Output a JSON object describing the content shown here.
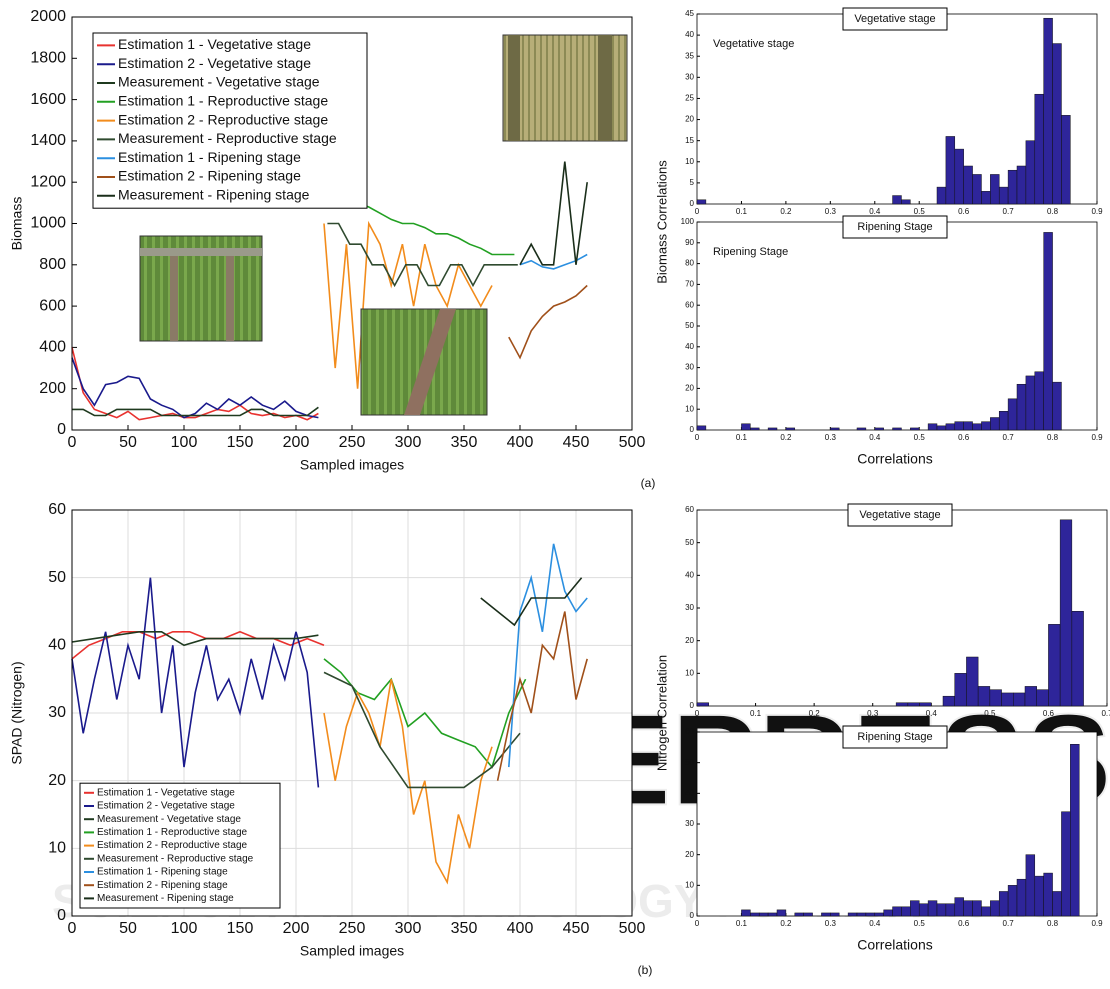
{
  "figure": {
    "panel_labels": [
      "(a)",
      "(b)"
    ],
    "watermark": [
      "SCITEPRESS",
      "SCIENCE AND TECHNOLOGY PUBLICATIONS"
    ]
  },
  "chart_data": [
    {
      "type": "line",
      "xlabel": "Sampled images",
      "ylabel": "Biomass",
      "xlim": [
        0,
        500
      ],
      "ylim": [
        0,
        2000
      ],
      "xticks": [
        0,
        50,
        100,
        150,
        200,
        250,
        300,
        350,
        400,
        450,
        500
      ],
      "yticks": [
        0,
        200,
        400,
        600,
        800,
        1000,
        1200,
        1400,
        1600,
        1800,
        2000
      ],
      "grid": false,
      "legend": "upper left",
      "series": [
        {
          "name": "Estimation 1 - Vegetative stage",
          "color": "#e8322f",
          "x": [
            0,
            10,
            20,
            30,
            40,
            50,
            60,
            70,
            80,
            90,
            100,
            110,
            120,
            130,
            140,
            150,
            160,
            170,
            180,
            190,
            200,
            210,
            220
          ],
          "values": [
            400,
            180,
            100,
            80,
            60,
            90,
            50,
            60,
            70,
            80,
            60,
            60,
            80,
            100,
            90,
            120,
            80,
            70,
            80,
            60,
            70,
            50,
            80
          ]
        },
        {
          "name": "Estimation 2 - Vegetative stage",
          "color": "#1a1a8c",
          "x": [
            0,
            10,
            20,
            30,
            40,
            50,
            60,
            70,
            80,
            90,
            100,
            110,
            120,
            130,
            140,
            150,
            160,
            170,
            180,
            190,
            200,
            210,
            220
          ],
          "values": [
            350,
            200,
            120,
            220,
            230,
            260,
            250,
            150,
            120,
            100,
            60,
            80,
            130,
            100,
            150,
            120,
            160,
            120,
            100,
            140,
            90,
            70,
            60
          ]
        },
        {
          "name": "Measurement - Vegetative stage",
          "color": "#1f3a1f",
          "x": [
            0,
            10,
            20,
            30,
            40,
            50,
            60,
            70,
            80,
            90,
            100,
            110,
            120,
            130,
            140,
            150,
            160,
            170,
            180,
            190,
            200,
            210,
            220
          ],
          "values": [
            100,
            100,
            70,
            70,
            100,
            100,
            100,
            100,
            70,
            70,
            70,
            70,
            70,
            70,
            70,
            70,
            100,
            100,
            70,
            70,
            70,
            70,
            110
          ]
        },
        {
          "name": "Estimation 1 - Reproductive stage",
          "color": "#22a022",
          "x": [
            255,
            265,
            275,
            285,
            295,
            305,
            315,
            325,
            335,
            345,
            355,
            365,
            375,
            385,
            395
          ],
          "values": [
            1100,
            1080,
            1050,
            1020,
            1000,
            1000,
            980,
            950,
            950,
            930,
            900,
            880,
            850,
            850,
            850
          ]
        },
        {
          "name": "Estimation 2 - Reproductive stage",
          "color": "#f28c1c",
          "x": [
            225,
            235,
            245,
            255,
            265,
            275,
            285,
            295,
            305,
            315,
            325,
            335,
            345,
            355,
            365,
            375
          ],
          "values": [
            1000,
            300,
            900,
            200,
            1000,
            900,
            700,
            900,
            600,
            900,
            700,
            600,
            800,
            700,
            600,
            700
          ]
        },
        {
          "name": "Measurement - Reproductive stage",
          "color": "#2f4a2f",
          "x": [
            228,
            238,
            248,
            258,
            268,
            278,
            288,
            298,
            308,
            318,
            328,
            338,
            348,
            358,
            368,
            378,
            388,
            398
          ],
          "values": [
            1000,
            1000,
            900,
            900,
            800,
            800,
            700,
            800,
            800,
            700,
            700,
            800,
            800,
            700,
            800,
            800,
            800,
            800
          ]
        },
        {
          "name": "Estimation 1 - Ripening stage",
          "color": "#2b8fe0",
          "x": [
            400,
            410,
            420,
            430,
            440,
            450,
            460
          ],
          "values": [
            800,
            820,
            790,
            780,
            800,
            820,
            850
          ]
        },
        {
          "name": "Estimation 2 - Ripening stage",
          "color": "#a0501a",
          "x": [
            390,
            400,
            410,
            420,
            430,
            440,
            450,
            460
          ],
          "values": [
            450,
            350,
            480,
            550,
            600,
            620,
            650,
            700
          ]
        },
        {
          "name": "Measurement - Ripening stage",
          "color": "#1a2e1a",
          "x": [
            400,
            410,
            420,
            430,
            440,
            450,
            460
          ],
          "values": [
            800,
            900,
            800,
            800,
            1300,
            800,
            1200
          ]
        }
      ]
    },
    {
      "type": "histogram",
      "title": "Vegetative stage",
      "annotation": "Vegetative stage",
      "ylabel": "Biomass Correlations",
      "color": "#2e259a",
      "xlim": [
        0,
        0.9
      ],
      "ylim": [
        0,
        45
      ],
      "xticks": [
        0,
        0.1,
        0.2,
        0.3,
        0.4,
        0.5,
        0.6,
        0.7,
        0.8,
        0.9
      ],
      "yticks": [
        0,
        5,
        10,
        15,
        20,
        25,
        30,
        35,
        40,
        45
      ],
      "bins": [
        0,
        0.02,
        0.04,
        0.06,
        0.08,
        0.1,
        0.12,
        0.14,
        0.16,
        0.18,
        0.2,
        0.22,
        0.24,
        0.26,
        0.28,
        0.3,
        0.32,
        0.34,
        0.36,
        0.38,
        0.4,
        0.42,
        0.44,
        0.46,
        0.48,
        0.5,
        0.52,
        0.54,
        0.56,
        0.58,
        0.6,
        0.62,
        0.64,
        0.66,
        0.68,
        0.7,
        0.72,
        0.74,
        0.76,
        0.78,
        0.8,
        0.82,
        0.84
      ],
      "values": [
        1,
        0,
        0,
        0,
        0,
        0,
        0,
        0,
        0,
        0,
        0,
        0,
        0,
        0,
        0,
        0,
        0,
        0,
        0,
        0,
        0,
        0,
        2,
        1,
        0,
        0,
        0,
        4,
        16,
        13,
        9,
        7,
        3,
        7,
        4,
        8,
        9,
        15,
        26,
        44,
        38,
        21
      ]
    },
    {
      "type": "histogram",
      "title": "Ripening Stage",
      "annotation": "Ripening Stage",
      "xlabel": "Correlations",
      "color": "#2e259a",
      "xlim": [
        0,
        0.9
      ],
      "ylim": [
        0,
        100
      ],
      "xticks": [
        0,
        0.1,
        0.2,
        0.3,
        0.4,
        0.5,
        0.6,
        0.7,
        0.8,
        0.9
      ],
      "yticks": [
        0,
        10,
        20,
        30,
        40,
        50,
        60,
        70,
        80,
        90,
        100
      ],
      "bins": [
        0,
        0.02,
        0.04,
        0.06,
        0.08,
        0.1,
        0.12,
        0.14,
        0.16,
        0.18,
        0.2,
        0.22,
        0.24,
        0.26,
        0.28,
        0.3,
        0.32,
        0.34,
        0.36,
        0.38,
        0.4,
        0.42,
        0.44,
        0.46,
        0.48,
        0.5,
        0.52,
        0.54,
        0.56,
        0.58,
        0.6,
        0.62,
        0.64,
        0.66,
        0.68,
        0.7,
        0.72,
        0.74,
        0.76,
        0.78,
        0.8,
        0.82,
        0.84
      ],
      "values": [
        2,
        0,
        0,
        0,
        0,
        3,
        1,
        0,
        1,
        0,
        1,
        0,
        0,
        0,
        0,
        1,
        0,
        0,
        1,
        0,
        1,
        0,
        1,
        0,
        1,
        0,
        3,
        2,
        3,
        4,
        4,
        3,
        4,
        6,
        9,
        15,
        22,
        26,
        28,
        95,
        23,
        0
      ]
    },
    {
      "type": "line",
      "xlabel": "Sampled images",
      "ylabel": "SPAD (Nitrogen)",
      "xlim": [
        0,
        500
      ],
      "ylim": [
        0,
        60
      ],
      "xticks": [
        0,
        50,
        100,
        150,
        200,
        250,
        300,
        350,
        400,
        450,
        500
      ],
      "yticks": [
        0,
        10,
        20,
        30,
        40,
        50,
        60
      ],
      "grid": true,
      "legend": "lower left",
      "series": [
        {
          "name": "Estimation 1 - Vegetative stage",
          "color": "#e8322f",
          "x": [
            0,
            15,
            30,
            45,
            60,
            75,
            90,
            105,
            120,
            135,
            150,
            165,
            180,
            195,
            210,
            225
          ],
          "values": [
            38,
            40,
            41,
            42,
            42,
            41,
            42,
            42,
            41,
            41,
            42,
            41,
            41,
            40,
            41,
            40
          ]
        },
        {
          "name": "Estimation 2 - Vegetative stage",
          "color": "#1a1a8c",
          "x": [
            0,
            10,
            20,
            30,
            40,
            50,
            60,
            70,
            80,
            90,
            100,
            110,
            120,
            130,
            140,
            150,
            160,
            170,
            180,
            190,
            200,
            210,
            220
          ],
          "values": [
            38,
            27,
            35,
            42,
            32,
            40,
            35,
            50,
            30,
            40,
            22,
            33,
            40,
            32,
            35,
            30,
            38,
            32,
            40,
            35,
            42,
            36,
            19
          ]
        },
        {
          "name": "Measurement - Vegetative stage",
          "color": "#1f3a1f",
          "x": [
            0,
            20,
            40,
            60,
            80,
            100,
            120,
            140,
            160,
            180,
            200,
            220
          ],
          "values": [
            40.5,
            41,
            41.5,
            42,
            42,
            40,
            41,
            41,
            41,
            41,
            41,
            41.5
          ]
        },
        {
          "name": "Estimation 1 - Reproductive stage",
          "color": "#22a022",
          "x": [
            225,
            240,
            255,
            270,
            285,
            300,
            315,
            330,
            345,
            360,
            375,
            390,
            405
          ],
          "values": [
            38,
            36,
            33,
            32,
            35,
            28,
            30,
            27,
            26,
            25,
            22,
            30,
            35
          ]
        },
        {
          "name": "Estimation 2 - Reproductive stage",
          "color": "#f28c1c",
          "x": [
            225,
            235,
            245,
            255,
            265,
            275,
            285,
            295,
            305,
            315,
            325,
            335,
            345,
            355,
            365,
            375
          ],
          "values": [
            30,
            20,
            28,
            33,
            30,
            25,
            35,
            28,
            15,
            20,
            8,
            5,
            15,
            10,
            20,
            25
          ]
        },
        {
          "name": "Measurement - Reproductive stage",
          "color": "#2f4a2f",
          "x": [
            225,
            250,
            275,
            300,
            325,
            350,
            375,
            400
          ],
          "values": [
            36,
            34,
            25,
            19,
            19,
            19,
            22,
            27
          ]
        },
        {
          "name": "Estimation 1 - Ripening stage",
          "color": "#2b8fe0",
          "x": [
            390,
            400,
            410,
            420,
            430,
            440,
            450,
            460
          ],
          "values": [
            22,
            45,
            50,
            42,
            55,
            48,
            45,
            47
          ]
        },
        {
          "name": "Estimation 2 - Ripening stage",
          "color": "#a0501a",
          "x": [
            380,
            390,
            400,
            410,
            420,
            430,
            440,
            450,
            460
          ],
          "values": [
            20,
            28,
            35,
            30,
            40,
            38,
            45,
            32,
            38
          ]
        },
        {
          "name": "Measurement - Ripening stage",
          "color": "#1a2e1a",
          "x": [
            365,
            380,
            395,
            410,
            425,
            440,
            455
          ],
          "values": [
            47,
            45,
            43,
            47,
            47,
            47,
            50
          ]
        }
      ]
    },
    {
      "type": "histogram",
      "title": "Vegetative stage",
      "ylabel": "Nitrogen Correlation",
      "color": "#2e259a",
      "xlim": [
        0,
        0.7
      ],
      "ylim": [
        0,
        60
      ],
      "xticks": [
        0,
        0.1,
        0.2,
        0.3,
        0.4,
        0.5,
        0.6,
        0.7
      ],
      "yticks": [
        0,
        10,
        20,
        30,
        40,
        50,
        60
      ],
      "bins": [
        0,
        0.02,
        0.04,
        0.06,
        0.08,
        0.1,
        0.12,
        0.14,
        0.16,
        0.18,
        0.2,
        0.22,
        0.24,
        0.26,
        0.28,
        0.3,
        0.32,
        0.34,
        0.36,
        0.38,
        0.4,
        0.42,
        0.44,
        0.46,
        0.48,
        0.5,
        0.52,
        0.54,
        0.56,
        0.58,
        0.6,
        0.62,
        0.64,
        0.66
      ],
      "values": [
        1,
        0,
        0,
        0,
        0,
        0,
        0,
        0,
        0,
        0,
        0,
        0,
        0,
        0,
        0,
        0,
        0,
        1,
        1,
        1,
        0,
        3,
        10,
        15,
        6,
        5,
        4,
        4,
        6,
        5,
        25,
        57,
        29
      ]
    },
    {
      "type": "histogram",
      "title": "Ripening Stage",
      "xlabel": "Correlations",
      "color": "#2e259a",
      "xlim": [
        0,
        0.9
      ],
      "ylim": [
        0,
        60
      ],
      "xticks": [
        0,
        0.1,
        0.2,
        0.3,
        0.4,
        0.5,
        0.6,
        0.7,
        0.8,
        0.9
      ],
      "yticks": [
        0,
        10,
        20,
        30,
        40,
        50,
        60
      ],
      "bins": [
        0,
        0.02,
        0.04,
        0.06,
        0.08,
        0.1,
        0.12,
        0.14,
        0.16,
        0.18,
        0.2,
        0.22,
        0.24,
        0.26,
        0.28,
        0.3,
        0.32,
        0.34,
        0.36,
        0.38,
        0.4,
        0.42,
        0.44,
        0.46,
        0.48,
        0.5,
        0.52,
        0.54,
        0.56,
        0.58,
        0.6,
        0.62,
        0.64,
        0.66,
        0.68,
        0.7,
        0.72,
        0.74,
        0.76,
        0.78,
        0.8,
        0.82,
        0.84,
        0.86
      ],
      "values": [
        0,
        0,
        0,
        0,
        0,
        2,
        1,
        1,
        1,
        2,
        0,
        1,
        1,
        0,
        1,
        1,
        0,
        1,
        1,
        1,
        1,
        2,
        3,
        3,
        5,
        4,
        5,
        4,
        4,
        6,
        5,
        5,
        3,
        5,
        8,
        10,
        12,
        20,
        13,
        14,
        8,
        34,
        56
      ]
    }
  ]
}
